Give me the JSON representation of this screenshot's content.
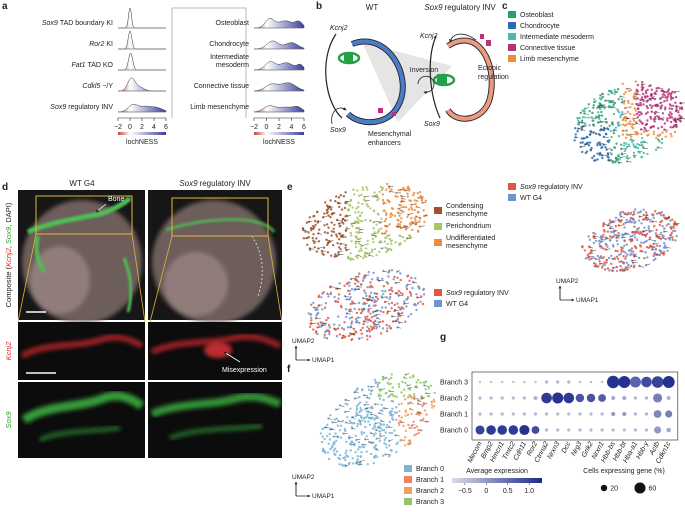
{
  "labels": [
    "a",
    "b",
    "c",
    "d",
    "e",
    "f",
    "g"
  ],
  "a": {
    "left_rows": [
      {
        "gene": "Sox9",
        "text": "TAD boundary KI"
      },
      {
        "gene": "Ror2",
        "text": "KI"
      },
      {
        "gene": "Fat1",
        "text": "TAD KO"
      },
      {
        "gene": "Cdkl5",
        "text": "−/Y"
      },
      {
        "gene": "Sox9",
        "text": "regulatory INV"
      }
    ],
    "right_rows": [
      [
        "Osteoblast"
      ],
      [
        "Chondrocyte"
      ],
      [
        "Intermediate",
        "mesoderm"
      ],
      [
        "Connective tissue"
      ],
      [
        "Limb mesenchyme"
      ]
    ],
    "ticks": [
      "−2",
      "0",
      "2",
      "4",
      "6"
    ],
    "axis_label": "lochNESS"
  },
  "b": {
    "wt": "WT",
    "inv": {
      "gene": "Sox9",
      "text": "regulatory INV"
    },
    "wt_genes": [
      "Kcnj2",
      "Sox9"
    ],
    "inv_genes": [
      "Kcnj2",
      "Sox9"
    ],
    "enhancers": [
      "Mesenchymal",
      "enhancers"
    ],
    "inversion": "Inversion",
    "ectopic": [
      "Ectopic",
      "regulation"
    ]
  },
  "c": {
    "cell_types": [
      "Osteoblast",
      "Chondrocyte",
      "Intermediate mesoderm",
      "Connective tissue",
      "Limb mesenchyme"
    ],
    "colors": [
      "#2f9d66",
      "#2a6db0",
      "#4bb8a8",
      "#b8307a",
      "#ef8a38"
    ],
    "genotypes": [
      {
        "gene": "Sox9",
        "text": "regulatory INV"
      },
      {
        "text": "WT G4"
      }
    ],
    "genotype_colors": [
      "#e8553e",
      "#6f93d2"
    ],
    "umap": [
      "UMAP2",
      "UMAP1"
    ]
  },
  "d": {
    "columns": [
      {
        "text": "WT G4"
      },
      {
        "gene": "Sox9",
        "text": "regulatory INV"
      }
    ],
    "bone": "Bone",
    "composite": [
      "Composite (",
      "Kcnj2",
      ", ",
      "Sox9",
      ", DAPI)"
    ],
    "kcnj2": "Kcnj2",
    "misexpression": "Misexpression",
    "sox9": "Sox9"
  },
  "e": {
    "states": [
      [
        "Condensing",
        "mesenchyme"
      ],
      [
        "Perichondrium"
      ],
      [
        "Undifferentiated",
        "mesenchyme"
      ]
    ],
    "colors": [
      "#a0522d",
      "#a8c46a",
      "#ee8a3a"
    ],
    "genotypes": [
      {
        "gene": "Sox9",
        "text": "regulatory INV"
      },
      {
        "text": "WT G4"
      }
    ],
    "genotype_colors": [
      "#e8553e",
      "#6f93d2"
    ],
    "umap": [
      "UMAP2",
      "UMAP1"
    ]
  },
  "f": {
    "branches": [
      "Branch 0",
      "Branch 1",
      "Branch 2",
      "Branch 3"
    ],
    "colors": [
      "#7db4d8",
      "#ee8466",
      "#f2a05e",
      "#8fc46a"
    ],
    "umap": [
      "UMAP2",
      "UMAP1"
    ]
  },
  "g": {
    "genes": [
      "Mecom",
      "Bmp2",
      "Hmcn1",
      "Tmtc2",
      "Cdh11",
      "Ror2",
      "Ctnna2",
      "Nrxn3",
      "Dcc",
      "Nrg3",
      "Grik2",
      "Nrxn1",
      "Hbb-bs",
      "Hbb-bt",
      "Hba-a1",
      "Hbb-y",
      "Actb",
      "Cdkn1c"
    ],
    "rows": [
      {
        "label": "Branch 3",
        "pct": [
          3,
          3,
          3,
          3,
          3,
          3,
          5,
          5,
          5,
          3,
          3,
          3,
          75,
          70,
          60,
          55,
          65,
          70
        ],
        "expr": [
          -0.5,
          -0.5,
          -0.5,
          -0.5,
          -0.5,
          -0.5,
          -0.3,
          -0.3,
          -0.3,
          -0.4,
          -0.4,
          -0.4,
          1.2,
          1.2,
          0.6,
          0.9,
          1.0,
          1.2
        ]
      },
      {
        "label": "Branch 2",
        "pct": [
          5,
          5,
          5,
          5,
          5,
          8,
          55,
          60,
          55,
          35,
          35,
          30,
          8,
          8,
          5,
          5,
          40,
          8
        ],
        "expr": [
          -0.4,
          -0.4,
          -0.4,
          -0.4,
          -0.4,
          -0.3,
          1.1,
          1.2,
          1.1,
          0.8,
          0.8,
          0.7,
          -0.2,
          -0.2,
          -0.3,
          -0.3,
          0.3,
          -0.3
        ]
      },
      {
        "label": "Branch 1",
        "pct": [
          5,
          5,
          5,
          5,
          5,
          5,
          5,
          5,
          5,
          5,
          5,
          5,
          8,
          8,
          5,
          5,
          30,
          25
        ],
        "expr": [
          -0.4,
          -0.4,
          -0.4,
          -0.4,
          -0.4,
          -0.4,
          -0.4,
          -0.4,
          -0.4,
          -0.4,
          -0.4,
          -0.4,
          0.0,
          0.0,
          -0.3,
          -0.3,
          0.2,
          0.3
        ]
      },
      {
        "label": "Branch 0",
        "pct": [
          40,
          45,
          45,
          45,
          50,
          30,
          5,
          5,
          5,
          5,
          5,
          5,
          5,
          5,
          5,
          5,
          25,
          10
        ],
        "expr": [
          1.0,
          1.1,
          1.1,
          1.1,
          1.2,
          0.9,
          -0.4,
          -0.4,
          -0.4,
          -0.4,
          -0.4,
          -0.4,
          -0.4,
          -0.4,
          -0.4,
          -0.4,
          0.0,
          -0.2
        ]
      }
    ],
    "expression_label": "Average expression",
    "expression_ticks": [
      {
        "value": -0.5,
        "label": "−0.5"
      },
      0,
      0.5,
      {
        "value": 1,
        "label": "1.0"
      }
    ],
    "expression_range": [
      -0.8,
      1.3
    ],
    "pct_label": "Cells expressing gene (%)",
    "pct_ticks": [
      20,
      60
    ]
  }
}
